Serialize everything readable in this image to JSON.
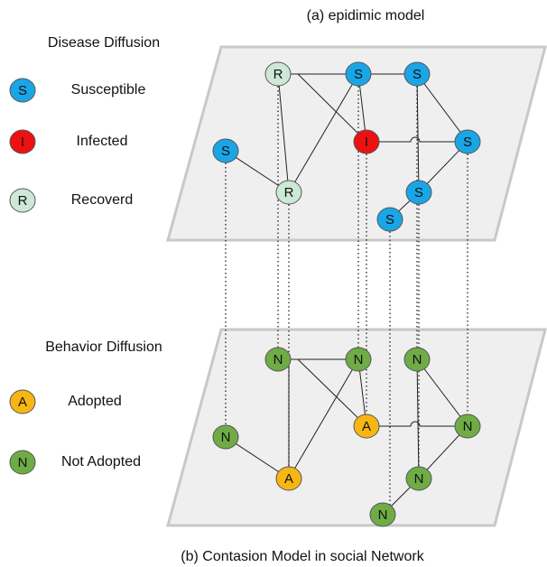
{
  "title_top": "(a) epidimic model",
  "caption": "(b) Contasion Model in social Network",
  "legend_disease": {
    "title": "Disease Diffusion",
    "items": [
      {
        "symbol": "S",
        "label": "Susceptible"
      },
      {
        "symbol": "I",
        "label": "Infected"
      },
      {
        "symbol": "R",
        "label": "Recoverd"
      }
    ]
  },
  "legend_behavior": {
    "title": "Behavior Diffusion",
    "items": [
      {
        "symbol": "A",
        "label": "Adopted"
      },
      {
        "symbol": "N",
        "label": "Not Adopted"
      }
    ]
  },
  "upper_nodes": [
    "R",
    "S",
    "S",
    "S",
    "I",
    "S",
    "R",
    "S",
    "S"
  ],
  "lower_nodes": [
    "N",
    "N",
    "N",
    "N",
    "A",
    "N",
    "A",
    "N",
    "N"
  ]
}
